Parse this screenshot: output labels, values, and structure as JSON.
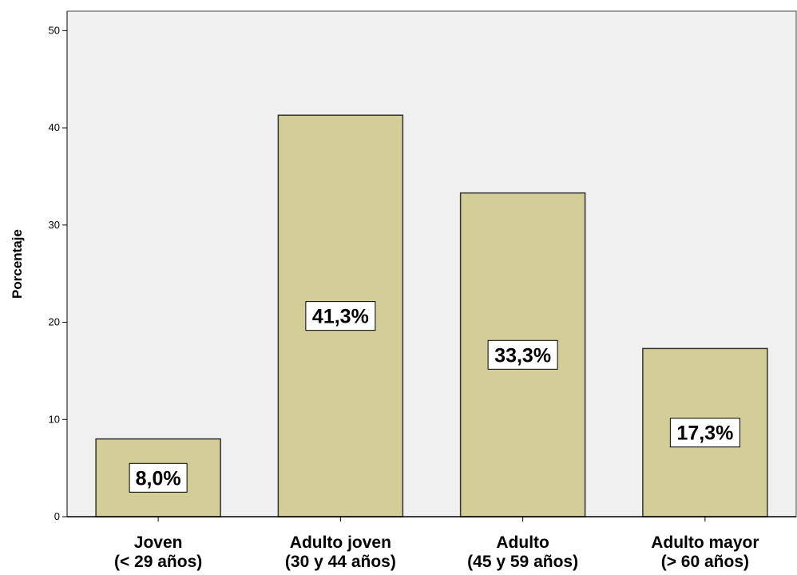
{
  "chart_data": {
    "type": "bar",
    "categories": [
      [
        "Joven",
        "(< 29 años)"
      ],
      [
        "Adulto joven",
        "(30 y 44 años)"
      ],
      [
        "Adulto",
        "(45 y 59 años)"
      ],
      [
        "Adulto mayor",
        "(> 60 años)"
      ]
    ],
    "values": [
      8.0,
      41.3,
      33.3,
      17.3
    ],
    "data_labels": [
      "8,0%",
      "41,3%",
      "33,3%",
      "17,3%"
    ],
    "title": "",
    "xlabel": "",
    "ylabel": "Porcentaje",
    "ylim": [
      0,
      52
    ],
    "yticks": [
      0,
      10,
      20,
      30,
      40,
      50
    ],
    "grid": false,
    "colors": {
      "plot_background": "#f0f0f0",
      "bar_fill": "#d3cd98",
      "bar_stroke": "#333333",
      "label_box": "#ffffff"
    }
  }
}
